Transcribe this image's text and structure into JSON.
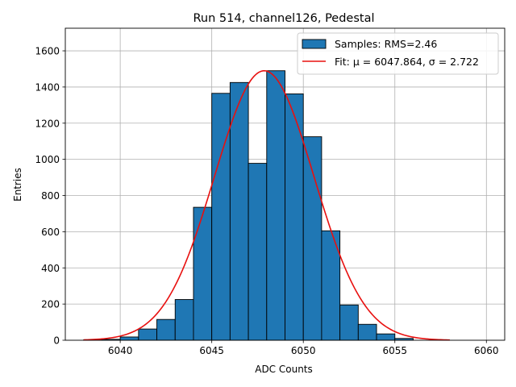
{
  "chart_data": {
    "type": "bar",
    "title": "Run 514, channel126, Pedestal",
    "xlabel": "ADC Counts",
    "ylabel": "Entries",
    "xlim": [
      6037.0,
      6061.0
    ],
    "ylim": [
      0,
      1725
    ],
    "xticks": [
      6040,
      6045,
      6050,
      6055,
      6060
    ],
    "yticks": [
      0,
      200,
      400,
      600,
      800,
      1000,
      1200,
      1400,
      1600
    ],
    "grid": true,
    "legend_position": "top-right",
    "histogram": {
      "name": "Samples: RMS=2.46",
      "bin_width": 1,
      "bin_edges_start": [
        6038,
        6039,
        6040,
        6041,
        6042,
        6043,
        6044,
        6045,
        6046,
        6047,
        6048,
        6049,
        6050,
        6051,
        6052,
        6053,
        6054,
        6055
      ],
      "counts": [
        2,
        5,
        18,
        62,
        115,
        225,
        735,
        1365,
        1425,
        978,
        1490,
        1362,
        1125,
        605,
        195,
        88,
        35,
        10
      ],
      "color": "#1f77b4",
      "edge_color": "#000000"
    },
    "fit": {
      "name": "Fit: μ = 6047.864, σ = 2.722",
      "mu": 6047.864,
      "sigma": 2.722,
      "peak": 1490,
      "x_range": [
        6038,
        6058
      ],
      "color": "#e8100f"
    },
    "grid_color": "#b0b0b0"
  }
}
